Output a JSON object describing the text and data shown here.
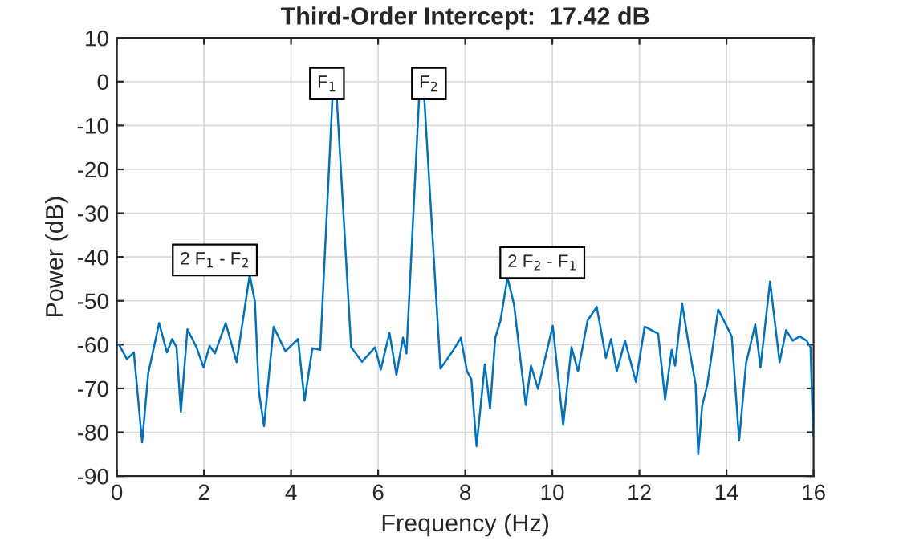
{
  "chart_data": {
    "type": "line",
    "title": "Third-Order Intercept:  17.42 dB",
    "xlabel": "Frequency (Hz)",
    "ylabel": "Power (dB)",
    "x": [
      0.05,
      0.23,
      0.39,
      0.58,
      0.72,
      0.97,
      1.15,
      1.27,
      1.37,
      1.47,
      1.62,
      1.83,
      1.99,
      2.13,
      2.25,
      2.5,
      2.75,
      3.05,
      3.17,
      3.26,
      3.38,
      3.6,
      3.87,
      4.16,
      4.31,
      4.49,
      4.67,
      4.95,
      5.05,
      5.38,
      5.63,
      5.93,
      6.06,
      6.26,
      6.42,
      6.57,
      6.65,
      6.94,
      7.06,
      7.43,
      7.71,
      7.9,
      8.04,
      8.14,
      8.26,
      8.45,
      8.57,
      8.69,
      8.81,
      8.97,
      9.12,
      9.39,
      9.51,
      9.67,
      10.01,
      10.25,
      10.44,
      10.59,
      10.81,
      11.02,
      11.23,
      11.35,
      11.48,
      11.67,
      11.92,
      12.12,
      12.43,
      12.59,
      12.74,
      12.82,
      12.98,
      13.17,
      13.29,
      13.35,
      13.44,
      13.56,
      13.81,
      14.12,
      14.29,
      14.45,
      14.66,
      14.78,
      15.0,
      15.22,
      15.37,
      15.52,
      15.68,
      15.84,
      15.93,
      15.99
    ],
    "series": [
      {
        "color": "#0072bd",
        "values": [
          -60,
          -63.3,
          -61.8,
          -82.3,
          -66.6,
          -55.1,
          -61.8,
          -58.7,
          -60.6,
          -75.3,
          -56.5,
          -60.6,
          -65.2,
          -60.3,
          -62,
          -55.1,
          -64,
          -44.1,
          -50.2,
          -70.6,
          -78.6,
          -55.9,
          -61.5,
          -58.7,
          -72.8,
          -60.8,
          -61.2,
          -3.8,
          -3.8,
          -60.6,
          -63.9,
          -60.6,
          -65.7,
          -57.3,
          -66.9,
          -58.4,
          -62,
          -3.8,
          -3.8,
          -65.5,
          -61.5,
          -58.4,
          -66.1,
          -67.9,
          -83.2,
          -64.5,
          -74.6,
          -58.4,
          -54.5,
          -44.7,
          -50.8,
          -73.8,
          -64.8,
          -70.1,
          -55.7,
          -78.3,
          -60.6,
          -66.1,
          -54.5,
          -51.4,
          -63,
          -58.7,
          -66.1,
          -59.1,
          -68.5,
          -55.9,
          -57.5,
          -72.5,
          -61.2,
          -64.8,
          -50.6,
          -62.4,
          -69.1,
          -85,
          -74,
          -69.1,
          -52,
          -58.1,
          -81.9,
          -64.2,
          -55.4,
          -65.2,
          -45.6,
          -64,
          -56.7,
          -59.1,
          -58.1,
          -59.1,
          -60.6,
          -80.7
        ]
      }
    ],
    "xlim": [
      0,
      16
    ],
    "ylim": [
      -90,
      10
    ],
    "xticks": [
      0,
      2,
      4,
      6,
      8,
      10,
      12,
      14,
      16
    ],
    "yticks": [
      -90,
      -80,
      -70,
      -60,
      -50,
      -40,
      -30,
      -20,
      -10,
      0,
      10
    ],
    "grid": true,
    "legend": false,
    "marker": "none",
    "line_style": "solid",
    "annotations": [
      {
        "text": "F$_{1}$",
        "x": 5.05,
        "y": -3.8
      },
      {
        "text": "F$_{2}$",
        "x": 6.94,
        "y": -3.8
      },
      {
        "text": "2 F$_{1}$ - F$_{2}$",
        "x": 3.05,
        "y": -44.1
      },
      {
        "text": "2 F$_{2}$ - F$_{1}$",
        "x": 8.97,
        "y": -44.7
      }
    ]
  }
}
